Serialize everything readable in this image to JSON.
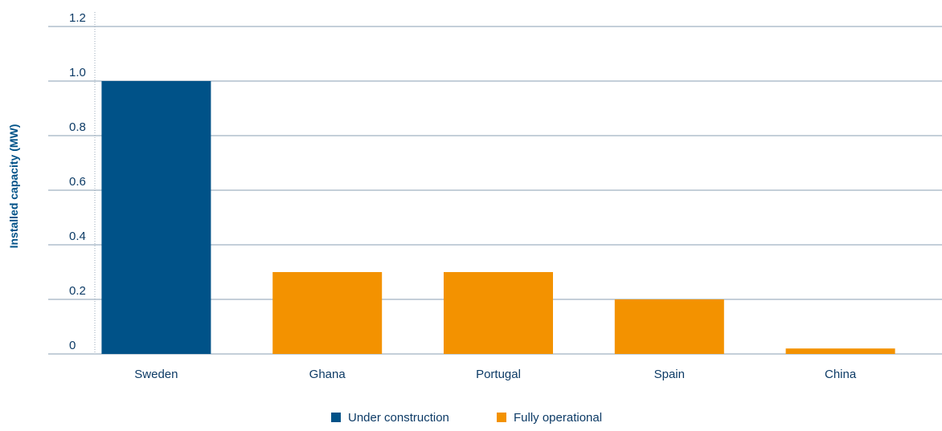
{
  "chart_data": {
    "type": "bar",
    "categories": [
      "Sweden",
      "Ghana",
      "Portugal",
      "Spain",
      "China"
    ],
    "values": [
      1.0,
      0.3,
      0.3,
      0.2,
      0.02
    ],
    "status": [
      "Under construction",
      "Fully operational",
      "Fully operational",
      "Fully operational",
      "Fully operational"
    ],
    "ylabel": "Installed capacity (MW)",
    "xlabel": "",
    "ylim": [
      0,
      1.2
    ],
    "y_ticks": [
      0,
      0.2,
      0.4,
      0.6,
      0.8,
      1.0,
      1.2
    ],
    "y_tick_labels": [
      "0",
      "0.2",
      "0.4",
      "0.6",
      "0.8",
      "1.0",
      "1.2"
    ],
    "grid": true,
    "legend_position": "bottom-center",
    "legend": [
      {
        "name": "Under construction",
        "color": "#005288"
      },
      {
        "name": "Fully operational",
        "color": "#f39200"
      }
    ],
    "colors": {
      "Under construction": "#005288",
      "Fully operational": "#f39200",
      "text": "#0d3b66",
      "grid": "#8a9fb3"
    }
  }
}
